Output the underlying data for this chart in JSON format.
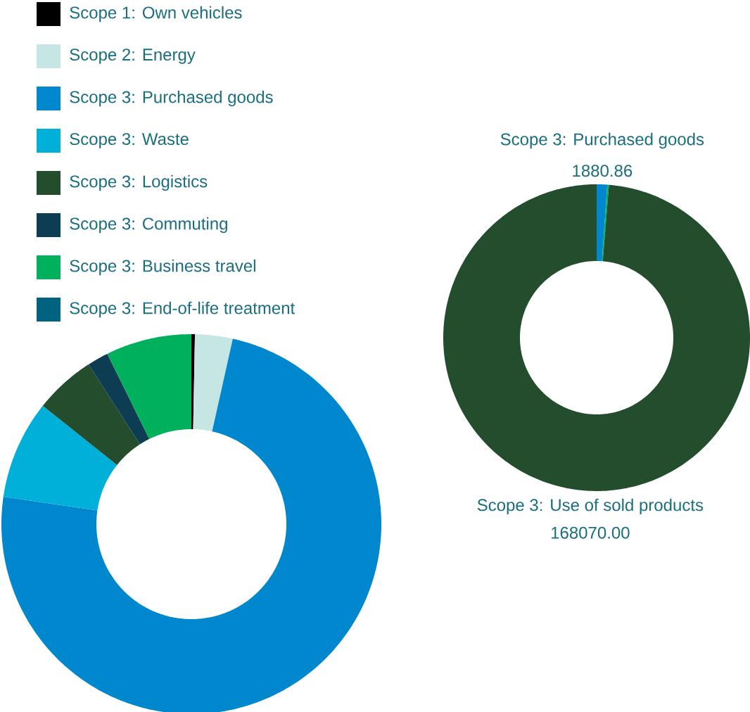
{
  "chart_data": [
    {
      "type": "donut",
      "legend": "top",
      "categories": [
        "Scope 1: Own vehicles",
        "Scope 2: Energy",
        "Scope 3: Purchased goods",
        "Scope 3: Waste",
        "Scope 3: Logistics",
        "Scope 3: Commuting",
        "Scope 3: Business travel",
        "Scope 3: End-of-life treatment"
      ],
      "values": [
        0.3,
        3.2,
        73.8,
        8.4,
        5.2,
        1.8,
        7.3,
        0
      ],
      "colors": [
        "#000000",
        "#c5e6e2",
        "#0087cd",
        "#00b0d8",
        "#234d2c",
        "#0c3d52",
        "#00b05c",
        "#00627f"
      ]
    },
    {
      "type": "donut",
      "categories": [
        "Scope 3: Purchased goods",
        null,
        "Scope 3: Use of sold products"
      ],
      "values": [
        1880.86,
        300,
        168070.0
      ],
      "value_labels": [
        "1880.86",
        null,
        "168070.00"
      ],
      "colors": [
        "#0087cd",
        "#00b05c",
        "#234d2c"
      ]
    }
  ]
}
